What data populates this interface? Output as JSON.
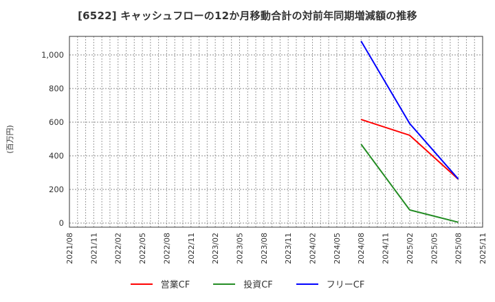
{
  "title": "[6522]  キャッシュフローの12か月移動合計の対前年同期増減額の推移",
  "chart_data": {
    "type": "line",
    "title": "[6522]  キャッシュフローの12か月移動合計の対前年同期増減額の推移",
    "xlabel": "",
    "ylabel": "(百万円)",
    "ylim": [
      -20,
      1110
    ],
    "yticks": [
      0,
      200,
      400,
      600,
      800,
      1000
    ],
    "ytick_labels": [
      "0",
      "200",
      "400",
      "600",
      "800",
      "1,000"
    ],
    "xticks": [
      "2021/08",
      "2021/11",
      "2022/02",
      "2022/05",
      "2022/08",
      "2022/11",
      "2023/02",
      "2023/05",
      "2023/08",
      "2023/11",
      "2024/02",
      "2024/05",
      "2024/08",
      "2024/11",
      "2025/02",
      "2025/05",
      "2025/08",
      "2025/11"
    ],
    "grid": true,
    "legend_position": "bottom",
    "x": [
      "2024/08",
      "2025/02",
      "2025/08"
    ],
    "series": [
      {
        "name": "営業CF",
        "color": "#ff0000",
        "values": [
          616,
          522,
          261
        ]
      },
      {
        "name": "投資CF",
        "color": "#228b22",
        "values": [
          469,
          78,
          5
        ]
      },
      {
        "name": "フリーCF",
        "color": "#0000ff",
        "values": [
          1082,
          592,
          262
        ]
      }
    ]
  },
  "legend": {
    "items": [
      {
        "label": "営業CF",
        "color": "#ff0000"
      },
      {
        "label": "投資CF",
        "color": "#228b22"
      },
      {
        "label": "フリーCF",
        "color": "#0000ff"
      }
    ]
  }
}
